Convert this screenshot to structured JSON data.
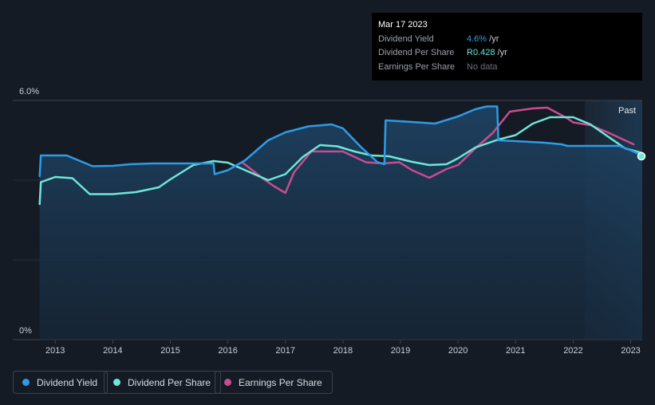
{
  "tooltip": {
    "date": "Mar 17 2023",
    "rows": [
      {
        "label": "Dividend Yield",
        "value": "4.6%",
        "unit": " /yr",
        "color": "#2f9be8"
      },
      {
        "label": "Dividend Per Share",
        "value": "R0.428",
        "unit": " /yr",
        "color": "#6ee7d8"
      },
      {
        "label": "Earnings Per Share",
        "value": "No data",
        "unit": "",
        "color": "#6b7280"
      }
    ]
  },
  "past_label": "Past",
  "legend": [
    {
      "label": "Dividend Yield",
      "color": "#2f9be8"
    },
    {
      "label": "Dividend Per Share",
      "color": "#6ee7d8"
    },
    {
      "label": "Earnings Per Share",
      "color": "#c94c90"
    }
  ],
  "chart_data": {
    "type": "line",
    "y_tick_labels": [
      "6.0%",
      "0%"
    ],
    "ylim": [
      0,
      6.0
    ],
    "xlim": [
      2012.72,
      2023.2
    ],
    "x_ticks": [
      "2013",
      "2014",
      "2015",
      "2016",
      "2017",
      "2018",
      "2019",
      "2020",
      "2021",
      "2022",
      "2023"
    ],
    "past_region_start": 2022.2,
    "series": [
      {
        "name": "Dividend Yield",
        "color": "#2f9be8",
        "fill": true,
        "points": [
          [
            2012.73,
            4.1
          ],
          [
            2012.75,
            4.62
          ],
          [
            2013.2,
            4.62
          ],
          [
            2013.4,
            4.5
          ],
          [
            2013.65,
            4.35
          ],
          [
            2014.0,
            4.36
          ],
          [
            2014.3,
            4.4
          ],
          [
            2014.7,
            4.42
          ],
          [
            2015.0,
            4.42
          ],
          [
            2015.75,
            4.42
          ],
          [
            2015.77,
            4.15
          ],
          [
            2016.0,
            4.25
          ],
          [
            2016.3,
            4.5
          ],
          [
            2016.7,
            5.0
          ],
          [
            2017.0,
            5.2
          ],
          [
            2017.4,
            5.35
          ],
          [
            2017.8,
            5.4
          ],
          [
            2018.0,
            5.3
          ],
          [
            2018.3,
            4.85
          ],
          [
            2018.6,
            4.45
          ],
          [
            2018.72,
            4.4
          ],
          [
            2018.74,
            5.5
          ],
          [
            2019.2,
            5.46
          ],
          [
            2019.6,
            5.42
          ],
          [
            2020.0,
            5.6
          ],
          [
            2020.3,
            5.78
          ],
          [
            2020.5,
            5.85
          ],
          [
            2020.68,
            5.85
          ],
          [
            2020.7,
            5.0
          ],
          [
            2021.0,
            4.98
          ],
          [
            2021.5,
            4.94
          ],
          [
            2021.8,
            4.9
          ],
          [
            2021.9,
            4.86
          ],
          [
            2022.5,
            4.86
          ],
          [
            2022.8,
            4.86
          ],
          [
            2023.0,
            4.75
          ],
          [
            2023.2,
            4.62
          ]
        ]
      },
      {
        "name": "Dividend Per Share",
        "color": "#6ee7d8",
        "fill": false,
        "points": [
          [
            2012.73,
            3.4
          ],
          [
            2012.75,
            3.95
          ],
          [
            2013.0,
            4.08
          ],
          [
            2013.3,
            4.05
          ],
          [
            2013.6,
            3.65
          ],
          [
            2014.0,
            3.65
          ],
          [
            2014.4,
            3.7
          ],
          [
            2014.8,
            3.82
          ],
          [
            2015.0,
            4.02
          ],
          [
            2015.4,
            4.38
          ],
          [
            2015.75,
            4.48
          ],
          [
            2016.0,
            4.44
          ],
          [
            2016.3,
            4.25
          ],
          [
            2016.7,
            4.0
          ],
          [
            2017.0,
            4.15
          ],
          [
            2017.3,
            4.58
          ],
          [
            2017.6,
            4.88
          ],
          [
            2017.9,
            4.85
          ],
          [
            2018.2,
            4.72
          ],
          [
            2018.5,
            4.62
          ],
          [
            2018.8,
            4.6
          ],
          [
            2019.2,
            4.46
          ],
          [
            2019.5,
            4.38
          ],
          [
            2019.8,
            4.4
          ],
          [
            2020.0,
            4.55
          ],
          [
            2020.3,
            4.82
          ],
          [
            2020.7,
            5.02
          ],
          [
            2021.0,
            5.13
          ],
          [
            2021.3,
            5.42
          ],
          [
            2021.6,
            5.58
          ],
          [
            2022.0,
            5.58
          ],
          [
            2022.3,
            5.4
          ],
          [
            2022.6,
            5.1
          ],
          [
            2022.9,
            4.8
          ],
          [
            2023.2,
            4.68
          ]
        ]
      },
      {
        "name": "Earnings Per Share",
        "color": "#c94c90",
        "fill": false,
        "points": [
          [
            2016.25,
            4.45
          ],
          [
            2016.6,
            4.05
          ],
          [
            2016.8,
            3.85
          ],
          [
            2017.0,
            3.68
          ],
          [
            2017.15,
            4.2
          ],
          [
            2017.45,
            4.72
          ],
          [
            2017.8,
            4.72
          ],
          [
            2018.0,
            4.72
          ],
          [
            2018.4,
            4.45
          ],
          [
            2018.7,
            4.42
          ],
          [
            2018.98,
            4.45
          ],
          [
            2019.2,
            4.25
          ],
          [
            2019.5,
            4.06
          ],
          [
            2019.8,
            4.28
          ],
          [
            2020.0,
            4.38
          ],
          [
            2020.3,
            4.8
          ],
          [
            2020.6,
            5.18
          ],
          [
            2020.9,
            5.72
          ],
          [
            2021.3,
            5.8
          ],
          [
            2021.55,
            5.82
          ],
          [
            2021.9,
            5.55
          ],
          [
            2022.0,
            5.45
          ],
          [
            2022.3,
            5.38
          ],
          [
            2022.6,
            5.2
          ],
          [
            2023.05,
            4.9
          ]
        ]
      }
    ]
  }
}
